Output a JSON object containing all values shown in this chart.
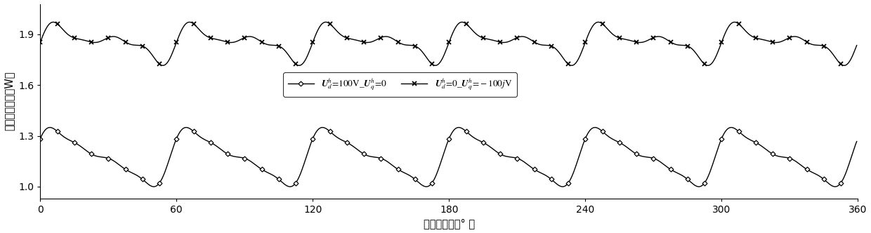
{
  "xlabel": "转子电角度（° ）",
  "ylabel": "转子涡流铁耗（W）",
  "xlim": [
    0,
    360
  ],
  "ylim": [
    0.93,
    2.08
  ],
  "xticks": [
    0,
    60,
    120,
    180,
    240,
    300,
    360
  ],
  "yticks": [
    1.0,
    1.3,
    1.6,
    1.9
  ],
  "legend1_label": "$\\boldsymbol{U}_d^h\\!=\\!100\\mathrm{V\\_}\\boldsymbol{U}_q^h\\!=\\!0$",
  "legend2_label": "$\\boldsymbol{U}_d^h\\!=\\!0\\mathrm{\\_}\\boldsymbol{U}_q^h\\!=\\!-\\!100j\\mathrm{V}$",
  "background_color": "white",
  "n_points": 720
}
